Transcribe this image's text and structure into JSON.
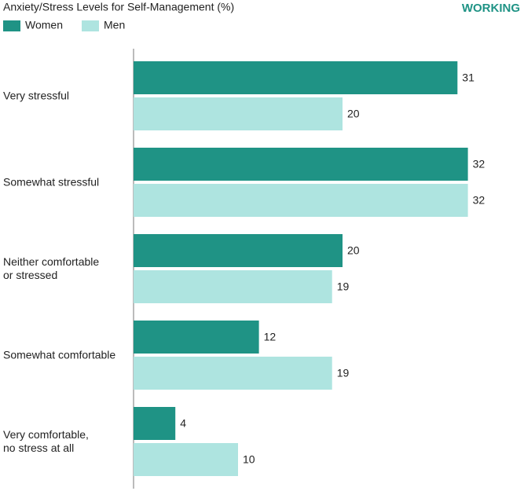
{
  "chart_data": {
    "type": "bar",
    "orientation": "horizontal",
    "title": "Anxiety/Stress Levels for Self-Management (%)",
    "tag": "WORKING",
    "categories": [
      "Very stressful",
      "Somewhat stressful",
      "Neither comfortable\nor stressed",
      "Somewhat comfortable",
      "Very comfortable,\nno stress at all"
    ],
    "series": [
      {
        "name": "Women",
        "color": "#1f9385",
        "values": [
          31,
          32,
          20,
          12,
          4
        ]
      },
      {
        "name": "Men",
        "color": "#aee4e0",
        "values": [
          20,
          32,
          19,
          19,
          10
        ]
      }
    ]
  }
}
